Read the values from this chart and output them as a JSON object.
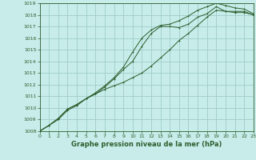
{
  "title": "Graphe pression niveau de la mer (hPa)",
  "bg_color": "#c8ecea",
  "grid_color": "#a0ccc8",
  "line_color": "#2d5e2d",
  "xlim": [
    0,
    23
  ],
  "ylim": [
    1008,
    1019
  ],
  "xticks": [
    0,
    1,
    2,
    3,
    4,
    5,
    6,
    7,
    8,
    9,
    10,
    11,
    12,
    13,
    14,
    15,
    16,
    17,
    18,
    19,
    20,
    21,
    22,
    23
  ],
  "yticks": [
    1008,
    1009,
    1010,
    1011,
    1012,
    1013,
    1014,
    1015,
    1016,
    1017,
    1018,
    1019
  ],
  "line1": [
    1008.0,
    1008.5,
    1009.0,
    1009.8,
    1010.2,
    1010.8,
    1011.2,
    1011.8,
    1012.5,
    1013.3,
    1014.0,
    1015.3,
    1016.4,
    1017.0,
    1017.0,
    1016.9,
    1017.2,
    1017.8,
    1018.1,
    1018.7,
    1018.3,
    1018.3,
    1018.3,
    1018.0
  ],
  "line2": [
    1008.0,
    1008.5,
    1009.1,
    1009.9,
    1010.3,
    1010.8,
    1011.3,
    1011.9,
    1012.6,
    1013.5,
    1014.8,
    1016.0,
    1016.7,
    1017.1,
    1017.2,
    1017.5,
    1017.9,
    1018.4,
    1018.7,
    1019.0,
    1018.8,
    1018.6,
    1018.5,
    1018.1
  ],
  "line3": [
    1008.0,
    1008.5,
    1009.1,
    1009.9,
    1010.3,
    1010.8,
    1011.2,
    1011.6,
    1011.9,
    1012.2,
    1012.6,
    1013.0,
    1013.6,
    1014.3,
    1015.0,
    1015.8,
    1016.4,
    1017.1,
    1017.8,
    1018.4,
    1018.3,
    1018.2,
    1018.2,
    1018.0
  ],
  "label_fontsize": 4.5,
  "xlabel_fontsize": 6.0,
  "lw": 0.7,
  "ms": 2.0
}
